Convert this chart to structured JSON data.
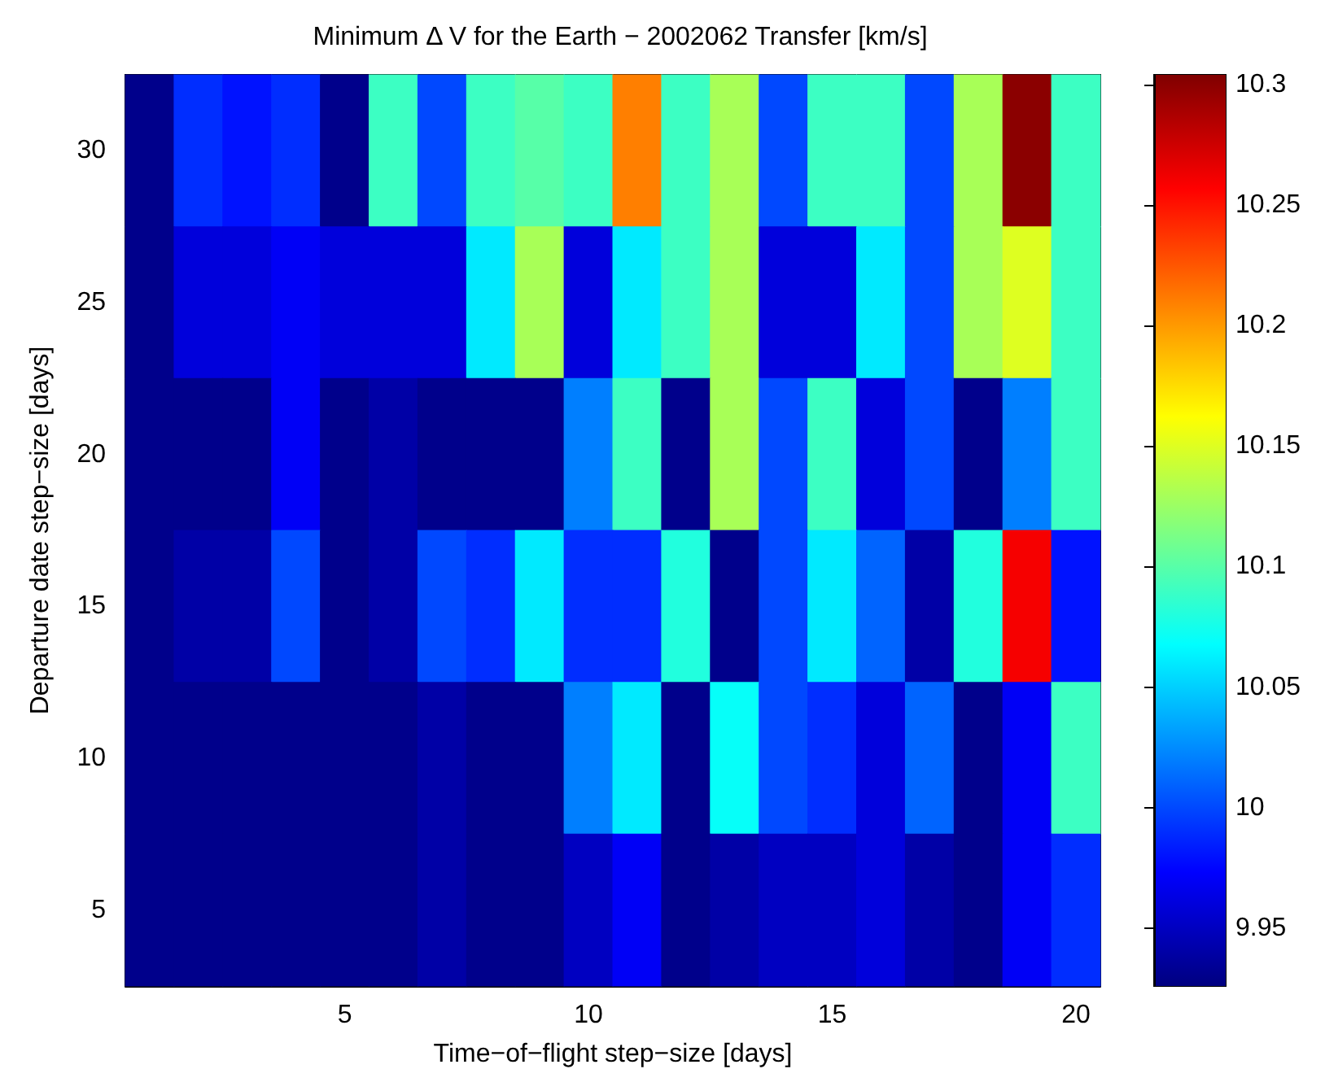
{
  "chart_data": {
    "type": "heatmap",
    "title": "Minimum Δ V for the Earth − 2002062 Transfer [km/s]",
    "xlabel": "Time−of−flight step−size [days]",
    "ylabel": "Departure date step−size [days]",
    "categories": [
      null,
      null,
      null,
      null,
      "5",
      null,
      null,
      null,
      null,
      "10",
      null,
      null,
      null,
      null,
      "15",
      null,
      null,
      null,
      null,
      "20"
    ],
    "y_categories": [
      "30",
      "25",
      "20",
      "15",
      "10",
      "5"
    ],
    "cells": [
      [
        9.93,
        9.99,
        9.98,
        9.99,
        9.93,
        10.09,
        10.0,
        10.09,
        10.1,
        10.09,
        10.21,
        10.09,
        10.13,
        10.0,
        10.09,
        10.09,
        10.0,
        10.13,
        10.3,
        10.09
      ],
      [
        9.93,
        9.96,
        9.96,
        9.97,
        9.96,
        9.96,
        9.96,
        10.06,
        10.13,
        9.96,
        10.06,
        10.09,
        10.13,
        9.96,
        9.96,
        10.06,
        10.0,
        10.13,
        10.15,
        10.09
      ],
      [
        9.93,
        9.93,
        9.93,
        9.97,
        9.93,
        9.94,
        9.93,
        9.93,
        9.93,
        10.02,
        10.09,
        9.93,
        10.13,
        10.0,
        10.09,
        9.96,
        10.0,
        9.93,
        10.02,
        10.09
      ],
      [
        9.93,
        9.94,
        9.94,
        10.0,
        9.93,
        9.94,
        10.0,
        9.99,
        10.06,
        9.99,
        9.99,
        10.08,
        9.93,
        10.0,
        10.06,
        10.01,
        9.94,
        10.08,
        10.26,
        9.98
      ],
      [
        9.93,
        9.93,
        9.93,
        9.93,
        9.93,
        9.93,
        9.94,
        9.93,
        9.93,
        10.02,
        10.06,
        9.93,
        10.07,
        10.0,
        9.99,
        9.96,
        10.01,
        9.93,
        9.97,
        10.09
      ],
      [
        9.93,
        9.93,
        9.93,
        9.93,
        9.93,
        9.93,
        9.94,
        9.93,
        9.93,
        9.95,
        9.97,
        9.93,
        9.94,
        9.95,
        9.95,
        9.96,
        9.94,
        9.93,
        9.97,
        9.99
      ]
    ],
    "colors": [
      "#000080",
      "#0000ff",
      "#0080ff",
      "#00ffff",
      "#80ff80",
      "#ffff00",
      "#ff8000",
      "#ff0000",
      "#800000"
    ],
    "clim": [
      9.926,
      10.304
    ],
    "cticks": [
      9.95,
      10,
      10.05,
      10.1,
      10.15,
      10.2,
      10.25,
      10.3
    ]
  }
}
